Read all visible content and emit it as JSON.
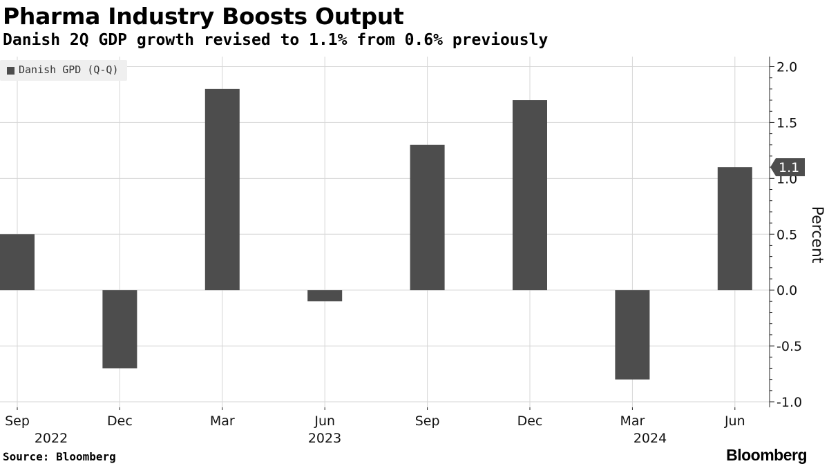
{
  "chart_data": {
    "type": "bar",
    "title": "Pharma Industry Boosts Output",
    "subtitle": "Danish 2Q GDP growth revised to 1.1% from 0.6% previously",
    "series": [
      {
        "name": "Danish GPD (Q-Q)",
        "color": "#4d4d4d",
        "values": [
          0.5,
          -0.7,
          1.8,
          -0.1,
          1.3,
          1.7,
          -0.8,
          1.1
        ]
      }
    ],
    "categories": [
      "Sep",
      "Dec",
      "Mar",
      "Jun",
      "Sep",
      "Dec",
      "Mar",
      "Jun"
    ],
    "years": [
      {
        "label": "2022",
        "category_index": 0
      },
      {
        "label": "2023",
        "category_index": 3
      },
      {
        "label": "2024",
        "category_index": 6
      }
    ],
    "ylabel": "Percent",
    "ylim": [
      -1.0,
      2.0
    ],
    "yticks": [
      "2.0",
      "1.5",
      "1.0",
      "0.5",
      "0.0",
      "-0.5",
      "-1.0"
    ],
    "ytick_values": [
      2.0,
      1.5,
      1.0,
      0.5,
      0.0,
      -0.5,
      -1.0
    ],
    "grid": true,
    "legend_position": "top-left",
    "last_value_callout": "1.1",
    "source": "Source: Bloomberg",
    "brand": "Bloomberg"
  }
}
